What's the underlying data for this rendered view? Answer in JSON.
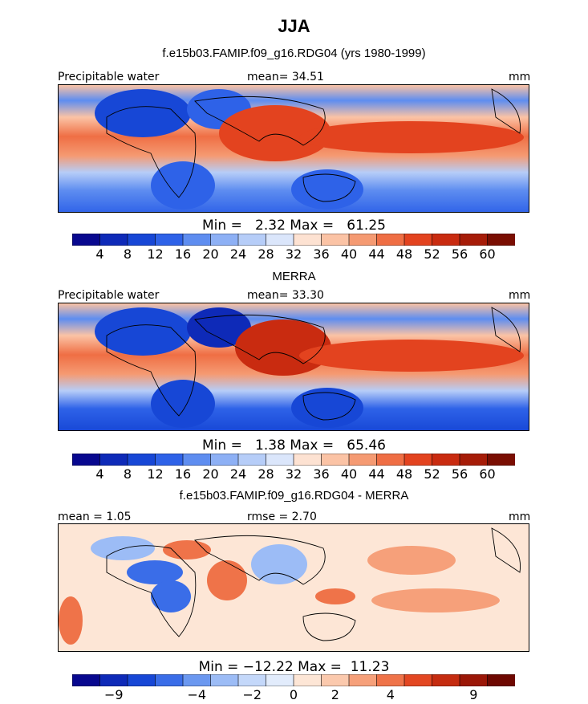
{
  "figure": {
    "title": "JJA",
    "colors": {
      "full": [
        "#08088f",
        "#0e2ab8",
        "#1747d6",
        "#2e62e8",
        "#5e8df0",
        "#8db0f5",
        "#b6cdf8",
        "#dbe6fb",
        "#fde2d2",
        "#fbc3a5",
        "#f59a72",
        "#ef6e44",
        "#e3431f",
        "#c92b10",
        "#a61c08",
        "#7a0e02"
      ],
      "diff": [
        "#08088f",
        "#0e2ab8",
        "#1747d6",
        "#3a6de8",
        "#6b98f0",
        "#9cbcf6",
        "#c4d8fa",
        "#e2ecfc",
        "#fde6d6",
        "#fbc9ad",
        "#f6a07a",
        "#ef7349",
        "#e34722",
        "#c52c10",
        "#9b1707",
        "#6e0801"
      ]
    }
  },
  "chart_data": [
    {
      "type": "heatmap",
      "title": "f.e15b03.FAMIP.f09_g16.RDG04 (yrs 1980-1999)",
      "left_label": "Precipitable water",
      "center_label": "mean=  34.51",
      "right_label": "mm",
      "min_max": "Min =   2.32 Max =   61.25",
      "colorbar_ticks": [
        "4",
        "8",
        "12",
        "16",
        "20",
        "24",
        "28",
        "32",
        "36",
        "40",
        "44",
        "48",
        "52",
        "56",
        "60"
      ],
      "min": 2.32,
      "max": 61.25,
      "mean": 34.51
    },
    {
      "type": "heatmap",
      "title": "MERRA",
      "left_label": "Precipitable water",
      "center_label": "mean=  33.30",
      "right_label": "mm",
      "min_max": "Min =   1.38 Max =   65.46",
      "colorbar_ticks": [
        "4",
        "8",
        "12",
        "16",
        "20",
        "24",
        "28",
        "32",
        "36",
        "40",
        "44",
        "48",
        "52",
        "56",
        "60"
      ],
      "min": 1.38,
      "max": 65.46,
      "mean": 33.3
    },
    {
      "type": "heatmap",
      "title": "f.e15b03.FAMIP.f09_g16.RDG04 - MERRA",
      "left_label": "mean =    1.05",
      "center_label": "rmse =   2.70",
      "right_label": "mm",
      "min_max": "Min = −12.22 Max =  11.23",
      "colorbar_ticks": [
        "−9",
        "−4",
        "−2",
        "0",
        "2",
        "4",
        "9"
      ],
      "min": -12.22,
      "max": 11.23,
      "mean": 1.05,
      "rmse": 2.7
    }
  ]
}
